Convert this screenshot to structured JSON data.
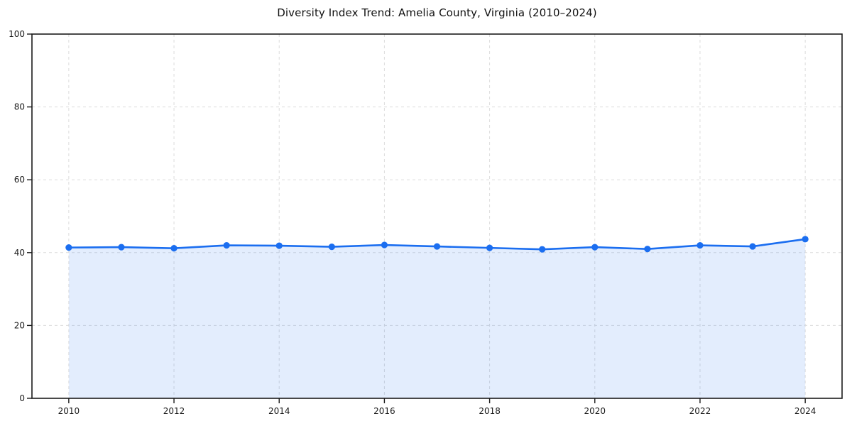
{
  "chart_data": {
    "type": "line",
    "title": "Diversity Index Trend: Amelia County, Virginia (2010–2024)",
    "xlabel": "",
    "ylabel": "",
    "x": [
      2010,
      2011,
      2012,
      2013,
      2014,
      2015,
      2016,
      2017,
      2018,
      2019,
      2020,
      2021,
      2022,
      2023,
      2024
    ],
    "series": [
      {
        "name": "Diversity Index",
        "values": [
          41.4,
          41.5,
          41.2,
          42.0,
          41.9,
          41.6,
          42.1,
          41.7,
          41.3,
          40.9,
          41.5,
          41.0,
          42.0,
          41.7,
          43.7
        ]
      }
    ],
    "xlim": [
      2009.3,
      2024.7
    ],
    "ylim": [
      0,
      100
    ],
    "xticks": [
      2010,
      2012,
      2014,
      2016,
      2018,
      2020,
      2022,
      2024
    ],
    "yticks": [
      0,
      20,
      40,
      60,
      80,
      100
    ],
    "grid": true,
    "grid_style": "dashed",
    "legend": "none",
    "marker": "circle",
    "area_fill": true,
    "colors": {
      "line": "#1b6ef0",
      "fill": "#1b6ef0",
      "fill_opacity": 0.12,
      "grid": "#dcdcdc",
      "spine": "#1a1a1a",
      "text": "#1a1a1a",
      "background": "#ffffff"
    }
  }
}
